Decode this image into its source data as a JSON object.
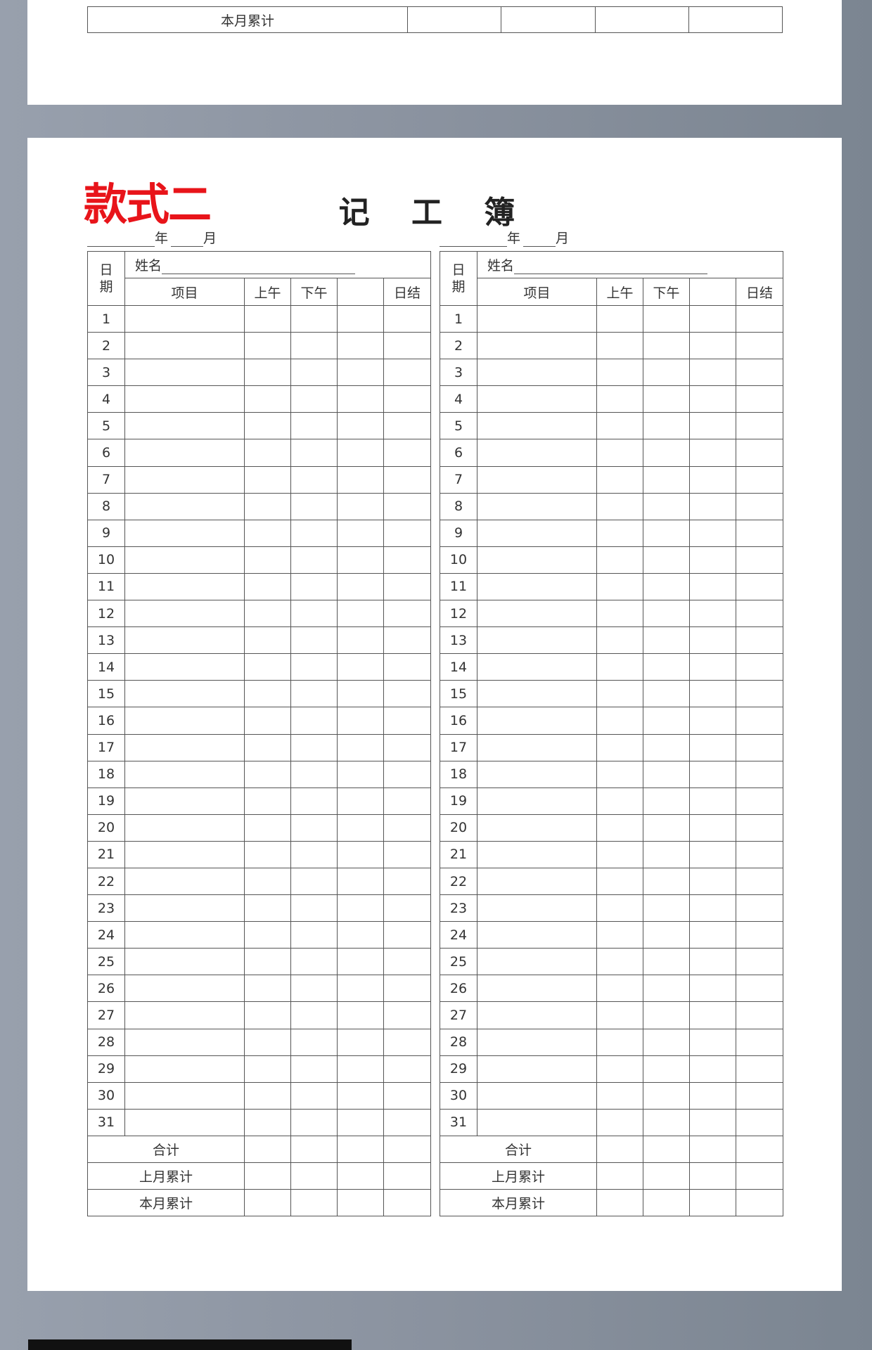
{
  "top_card": {
    "summary_label": "本月累计"
  },
  "form": {
    "style_label": "款式二",
    "title": "记 工 簿",
    "year_label": "年",
    "month_label": "月",
    "date_header": "日期",
    "name_label": "姓名",
    "columns": [
      "项目",
      "上午",
      "下午",
      "",
      "日结"
    ],
    "days": [
      1,
      2,
      3,
      4,
      5,
      6,
      7,
      8,
      9,
      10,
      11,
      12,
      13,
      14,
      15,
      16,
      17,
      18,
      19,
      20,
      21,
      22,
      23,
      24,
      25,
      26,
      27,
      28,
      29,
      30,
      31
    ],
    "summary_rows": [
      "合计",
      "上月累计",
      "本月累计"
    ]
  },
  "colors": {
    "accent": "#e8141a",
    "background": "#8a929f"
  }
}
